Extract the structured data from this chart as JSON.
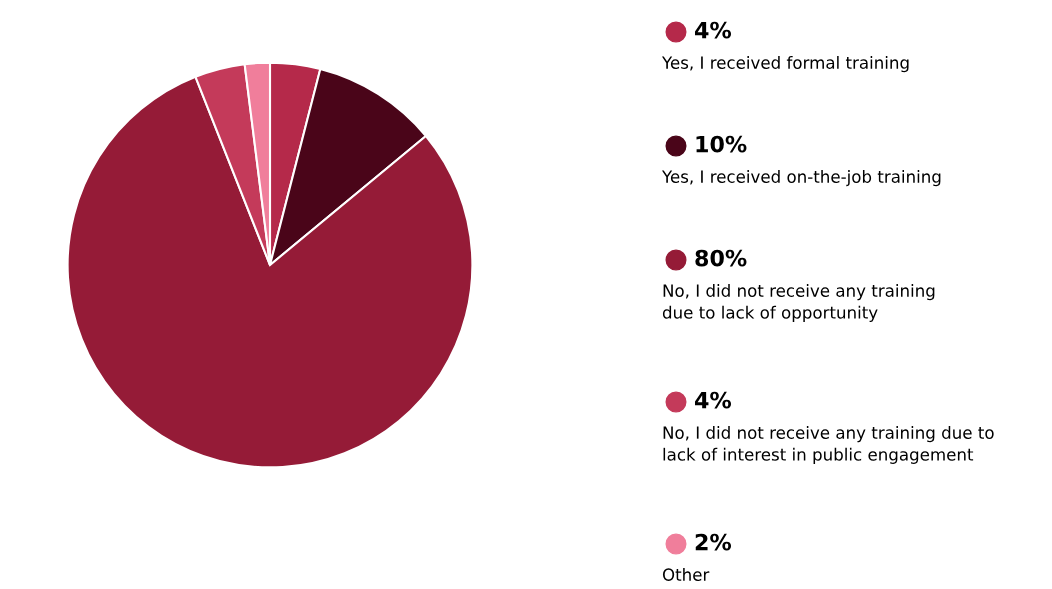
{
  "chart_data": {
    "type": "pie",
    "categories": [
      "Yes, I received formal training",
      "Yes, I received on-the-job training",
      "No, I did not receive any training\ndue to lack of opportunity",
      "No, I did not receive any training due to\nlack of interest in public engagement",
      "Other"
    ],
    "values": [
      4,
      10,
      80,
      4,
      2
    ],
    "value_labels": [
      "4%",
      "10%",
      "80%",
      "4%",
      "2%"
    ],
    "colors": [
      "#b5294a",
      "#4a0519",
      "#951b37",
      "#c43a5a",
      "#f07e9b"
    ],
    "legend": "right"
  }
}
